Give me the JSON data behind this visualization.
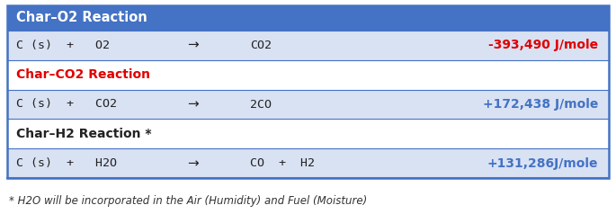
{
  "title_row": {
    "text": "Char–O2 Reaction",
    "bg_color": "#4472C4",
    "text_color": "#FFFFFF",
    "font_weight": "bold"
  },
  "rows": [
    {
      "reactant": "C (s)  +   O2",
      "arrow": "→",
      "product": "CO2",
      "energy": "-393,490 J/mole",
      "energy_color": "#E00000",
      "bg_color": "#D9E2F3",
      "is_header": false
    },
    {
      "reactant": "Char–CO2 Reaction",
      "arrow": "",
      "product": "",
      "energy": "",
      "energy_color": "#FF0000",
      "bg_color": "#FFFFFF",
      "is_header": true,
      "header_color": "#E00000"
    },
    {
      "reactant": "C (s)  +   CO2",
      "arrow": "→",
      "product": "2CO",
      "energy": "+172,438 J/mole",
      "energy_color": "#4472C4",
      "bg_color": "#D9E2F3",
      "is_header": false
    },
    {
      "reactant": "Char–H2 Reaction *",
      "arrow": "",
      "product": "",
      "energy": "",
      "energy_color": "#000000",
      "bg_color": "#FFFFFF",
      "is_header": true,
      "header_color": "#222222"
    },
    {
      "reactant": "C (s)  +   H2O",
      "arrow": "→",
      "product": "CO  +  H2",
      "energy": "+131,286J/mole",
      "energy_color": "#4472C4",
      "bg_color": "#D9E2F3",
      "is_header": false
    }
  ],
  "footnote": "* H2O will be incorporated in the Air (Humidity) and Fuel (Moisture)",
  "border_color": "#4472C4",
  "fig_width": 6.85,
  "fig_height": 2.48,
  "dpi": 100
}
